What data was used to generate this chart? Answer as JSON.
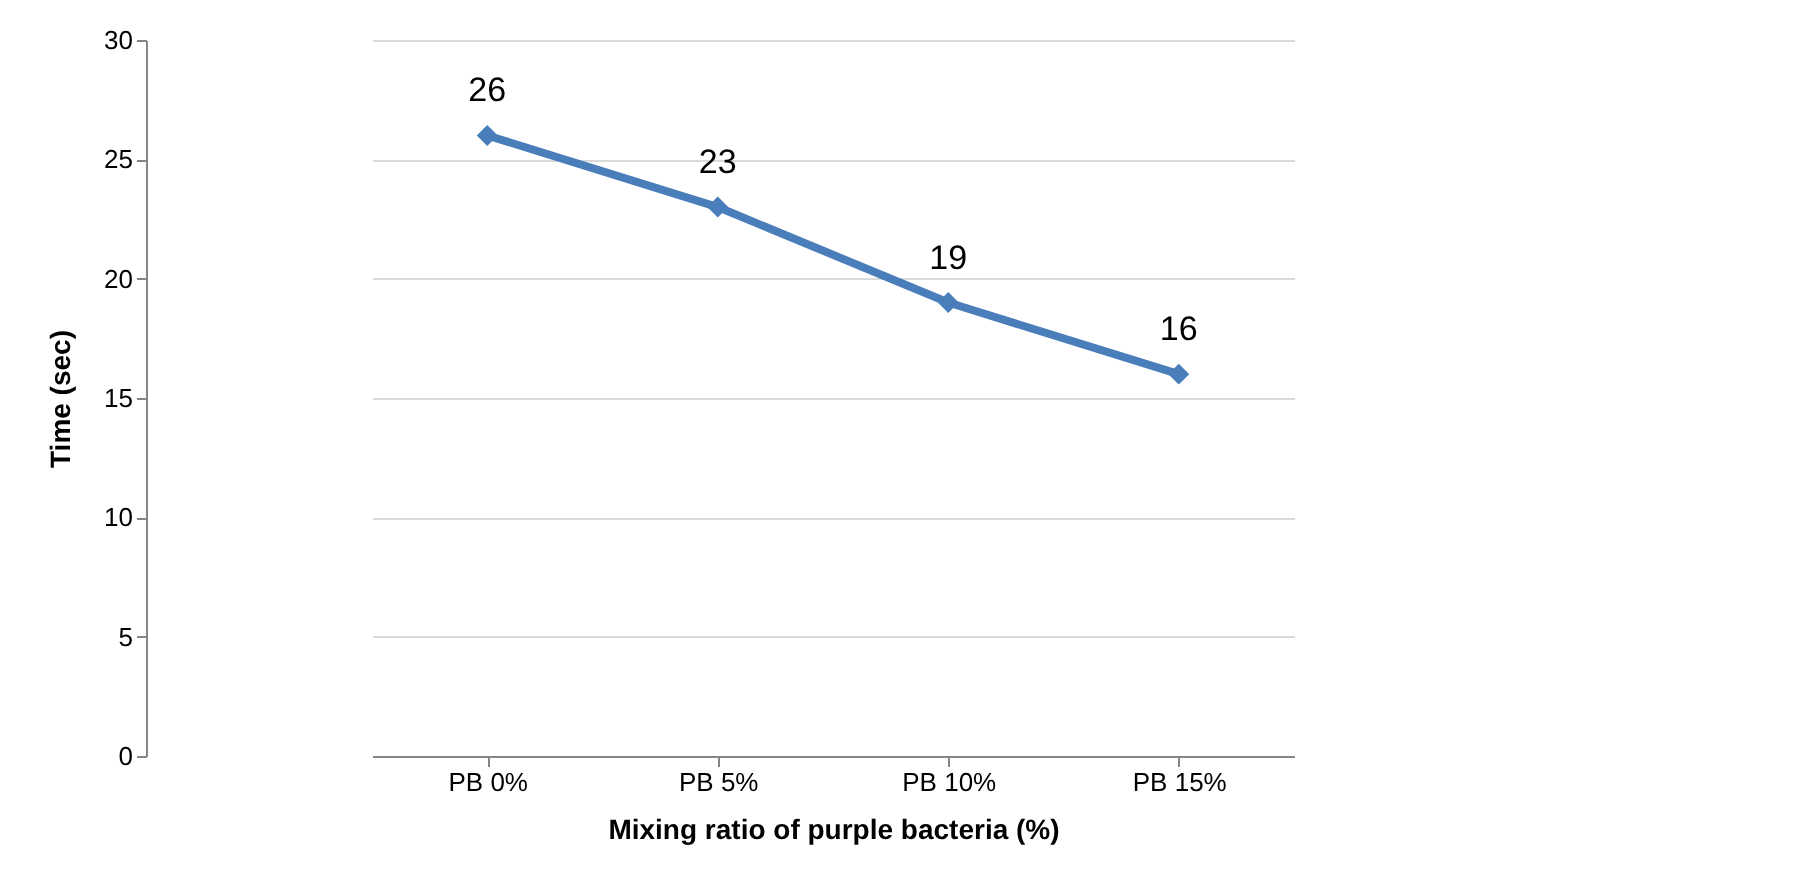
{
  "chart_data": {
    "type": "line",
    "xlabel": "Mixing ratio of purple bacteria (%)",
    "ylabel": "Time (sec)",
    "categories": [
      "PB 0%",
      "PB 5%",
      "PB 10%",
      "PB 15%"
    ],
    "series": [
      {
        "color": "#4a7ebb",
        "values": [
          26,
          23,
          19,
          16
        ]
      }
    ],
    "ylim": [
      0,
      30
    ],
    "yticks": [
      0,
      5,
      10,
      15,
      20,
      25,
      30
    ],
    "grid": "y",
    "marker": "diamond",
    "data_labels": true,
    "line_style": "solid"
  }
}
